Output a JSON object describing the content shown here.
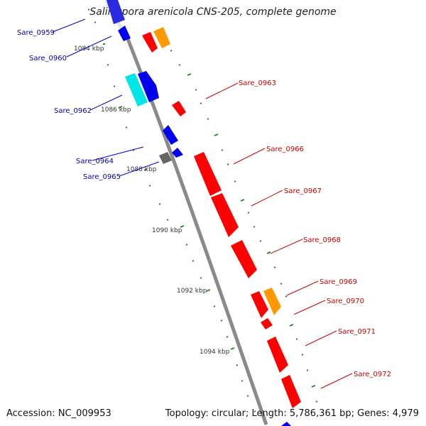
{
  "title": "Salinispora arenicola CNS-205, complete genome",
  "accession": "Accession: NC_009953",
  "topology": "Topology: circular; Length: 5,786,361 bp; Genes: 4,979",
  "colors": {
    "backbone": "#808080",
    "forward_label": "#cc0000",
    "reverse_label": "#0000aa",
    "tick": "#2a8a2a",
    "cds_red": "#ff0000",
    "cds_blue": "#0000ee",
    "cds_orange": "#ff9900",
    "cds_cyan": "#00e5e5",
    "cds_gray": "#666666"
  },
  "kbp_labels": [
    "1084 kbp",
    "1086 kbp",
    "1088 kbp",
    "1090 kbp",
    "1092 kbp",
    "1094 kbp"
  ],
  "gene_labels": {
    "forward": [
      "Sare_0963",
      "Sare_0966",
      "Sare_0967",
      "Sare_0968",
      "Sare_0969",
      "Sare_0970",
      "Sare_0971",
      "Sare_0972"
    ],
    "reverse": [
      "Sare_0959",
      "Sare_0960",
      "Sare_0962",
      "Sare_0964",
      "Sare_0965"
    ]
  }
}
